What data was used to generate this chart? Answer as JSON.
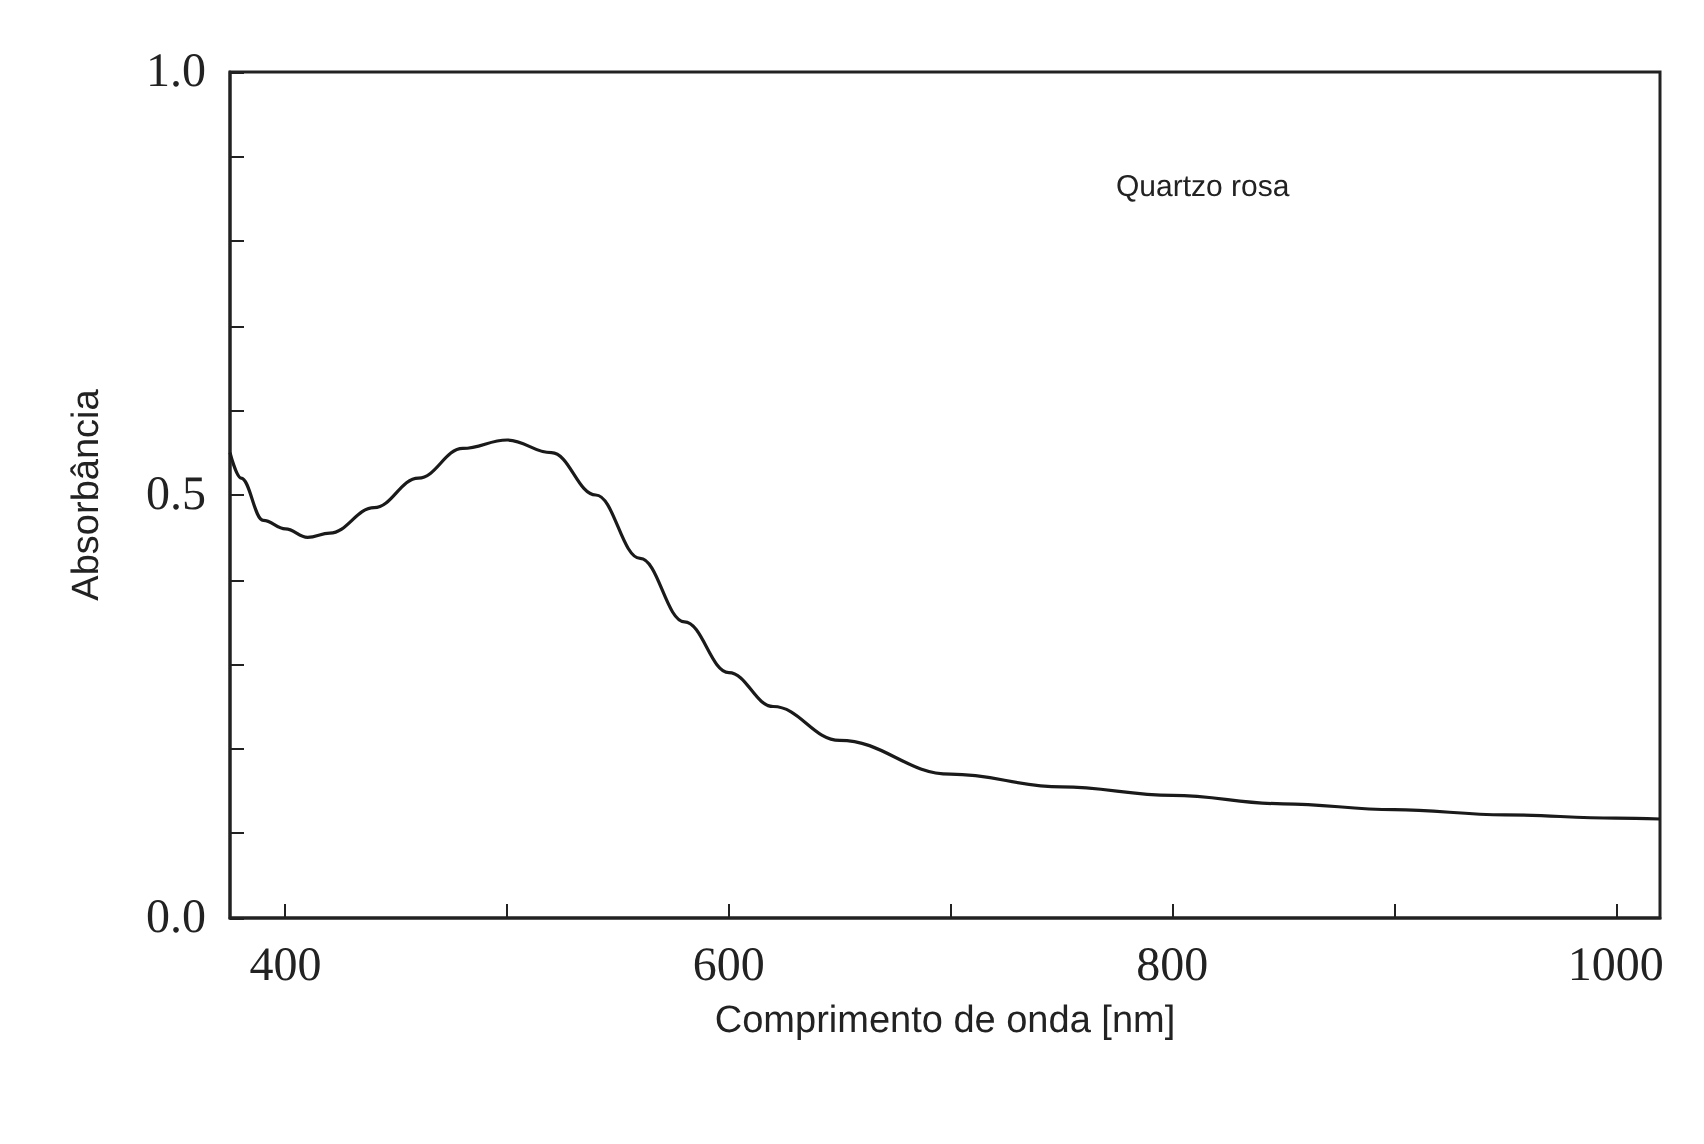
{
  "chart_data": {
    "type": "line",
    "xlabel": "Comprimento de onda [nm]",
    "ylabel": "Absorbância",
    "annotations": [
      "Quartzo rosa"
    ],
    "x": [
      375,
      380,
      390,
      400,
      410,
      420,
      440,
      460,
      480,
      500,
      520,
      540,
      560,
      580,
      600,
      620,
      650,
      700,
      750,
      800,
      850,
      900,
      950,
      1000,
      1020
    ],
    "series": [
      {
        "color": "#1a1a1a",
        "values": [
          0.55,
          0.52,
          0.47,
          0.46,
          0.45,
          0.455,
          0.485,
          0.52,
          0.555,
          0.565,
          0.55,
          0.5,
          0.425,
          0.35,
          0.29,
          0.25,
          0.21,
          0.17,
          0.155,
          0.145,
          0.135,
          0.128,
          0.122,
          0.118,
          0.117
        ]
      }
    ],
    "xlim": [
      375,
      1020
    ],
    "xticks": [
      400,
      {
        "value": 500,
        "label": null
      },
      600,
      {
        "value": 700,
        "label": null
      },
      800,
      {
        "value": 900,
        "label": null
      },
      1000
    ],
    "ylim": [
      0,
      1
    ],
    "yticks": [
      {
        "value": 0,
        "label": "0.0"
      },
      {
        "value": 0.1,
        "label": null
      },
      {
        "value": 0.2,
        "label": null
      },
      {
        "value": 0.3,
        "label": null
      },
      {
        "value": 0.4,
        "label": null
      },
      0.5,
      {
        "value": 0.6,
        "label": null
      },
      {
        "value": 0.7,
        "label": null
      },
      {
        "value": 0.8,
        "label": null
      },
      {
        "value": 0.9,
        "label": null
      },
      {
        "value": 1,
        "label": "1.0"
      }
    ],
    "grid": false,
    "marker": "none",
    "line_style": "solid"
  }
}
